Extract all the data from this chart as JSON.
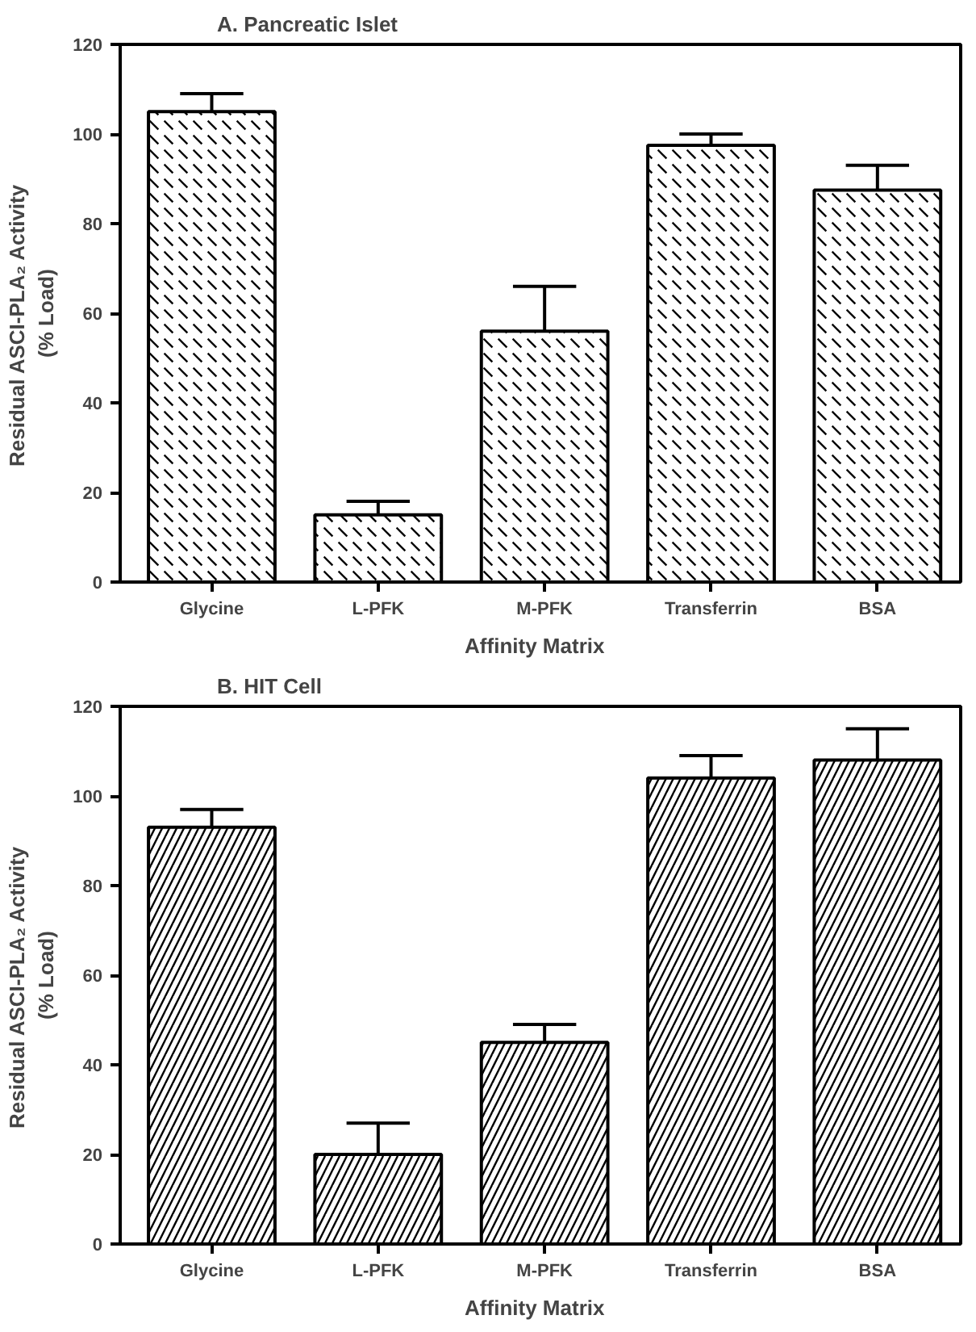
{
  "chart_data": [
    {
      "type": "bar",
      "title": "A.   Pancreatic  Islet",
      "xlabel": "Affinity   Matrix",
      "ylabel": "Residual   ASCI-PLA₂   Activity\n(% Load)",
      "categories": [
        "Glycine",
        "L-PFK",
        "M-PFK",
        "Transferrin",
        "BSA"
      ],
      "series": [
        {
          "color": "#000000",
          "values": [
            105,
            15,
            56,
            97.5,
            87.5
          ],
          "errors": [
            [
              105,
              109
            ],
            [
              15,
              18
            ],
            [
              56,
              66
            ],
            [
              97.5,
              100
            ],
            [
              87.5,
              93
            ]
          ]
        }
      ],
      "ylim": [
        0,
        120
      ],
      "yticks": [
        0,
        20,
        40,
        60,
        80,
        100,
        120
      ]
    },
    {
      "type": "bar",
      "title": "B.   HIT  Cell",
      "xlabel": "Affinity   Matrix",
      "ylabel": "Residual   ASCI-PLA₂   Activity\n(% Load)",
      "categories": [
        "Glycine",
        "L-PFK",
        "M-PFK",
        "Transferrin",
        "BSA"
      ],
      "series": [
        {
          "color": "#000000",
          "values": [
            93,
            20,
            45,
            104,
            108
          ],
          "errors": [
            [
              93,
              97
            ],
            [
              20,
              27
            ],
            [
              45,
              49
            ],
            [
              104,
              109
            ],
            [
              108,
              115
            ]
          ]
        }
      ],
      "ylim": [
        0,
        120
      ],
      "yticks": [
        0,
        20,
        40,
        60,
        80,
        100,
        120
      ]
    }
  ]
}
